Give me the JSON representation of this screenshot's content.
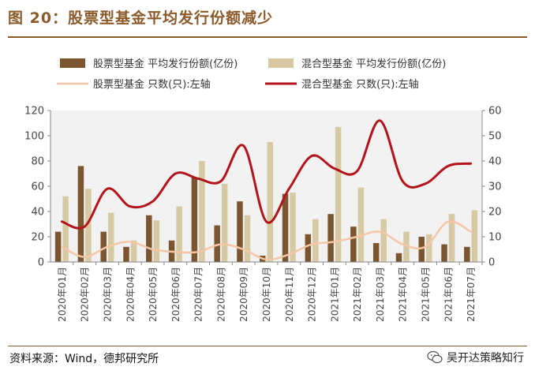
{
  "header": {
    "title": "图 20：股票型基金平均发行份额减少"
  },
  "footer": {
    "source": "资料来源：Wind，德邦研究所",
    "watermark": "吴开达策略知行"
  },
  "colors": {
    "stock_bar": "#7a5530",
    "mixed_bar": "#d6c9a4",
    "stock_line": "#f6c6a6",
    "mixed_line": "#b3141b",
    "text": "#444444",
    "grid": "#bdbdbd",
    "accent": "#8a5a2b"
  },
  "icons": {
    "watermark": "wechat-icon"
  },
  "chart_data": {
    "type": "bar",
    "categories": [
      "2020年01月",
      "2020年02月",
      "2020年03月",
      "2020年04月",
      "2020年05月",
      "2020年06月",
      "2020年07月",
      "2020年08月",
      "2020年09月",
      "2020年10月",
      "2020年11月",
      "2020年12月",
      "2021年01月",
      "2021年02月",
      "2021年03月",
      "2021年04月",
      "2021年05月",
      "2021年06月",
      "2021年07月"
    ],
    "series": [
      {
        "name": "股票型基金 平均发行份额(亿份)",
        "kind": "bar",
        "axis": "left",
        "values": [
          24,
          76,
          24,
          12,
          37,
          17,
          67,
          29,
          48,
          5,
          54,
          22,
          38,
          28,
          15,
          7,
          20,
          14,
          12
        ]
      },
      {
        "name": "混合型基金 平均发行份额(亿份)",
        "kind": "bar",
        "axis": "left",
        "values": [
          52,
          58,
          39,
          17,
          33,
          44,
          80,
          62,
          37,
          95,
          55,
          34,
          107,
          59,
          34,
          24,
          22,
          38,
          41
        ]
      },
      {
        "name": "股票型基金 只数(只):左轴",
        "kind": "line",
        "axis": "right",
        "values": [
          6,
          2,
          6,
          8,
          5,
          4,
          4,
          7,
          5,
          1,
          3,
          7,
          8,
          10,
          12,
          7,
          6,
          16,
          12
        ]
      },
      {
        "name": "混合型基金 只数(只):左轴",
        "kind": "line",
        "axis": "right",
        "values": [
          16,
          14,
          29,
          22,
          24,
          35,
          33,
          32,
          46,
          16,
          29,
          42,
          37,
          36,
          56,
          32,
          31,
          38,
          39
        ]
      }
    ],
    "left_ticks": [
      "0",
      "20",
      "40",
      "60",
      "80",
      "100",
      "120"
    ],
    "right_ticks": [
      "0",
      "10",
      "20",
      "30",
      "40",
      "50",
      "60"
    ],
    "ylim_left": [
      0,
      120
    ],
    "ylim_right": [
      0,
      60
    ],
    "grid": false,
    "legend": "top",
    "xlabel": "",
    "ylabel": ""
  }
}
